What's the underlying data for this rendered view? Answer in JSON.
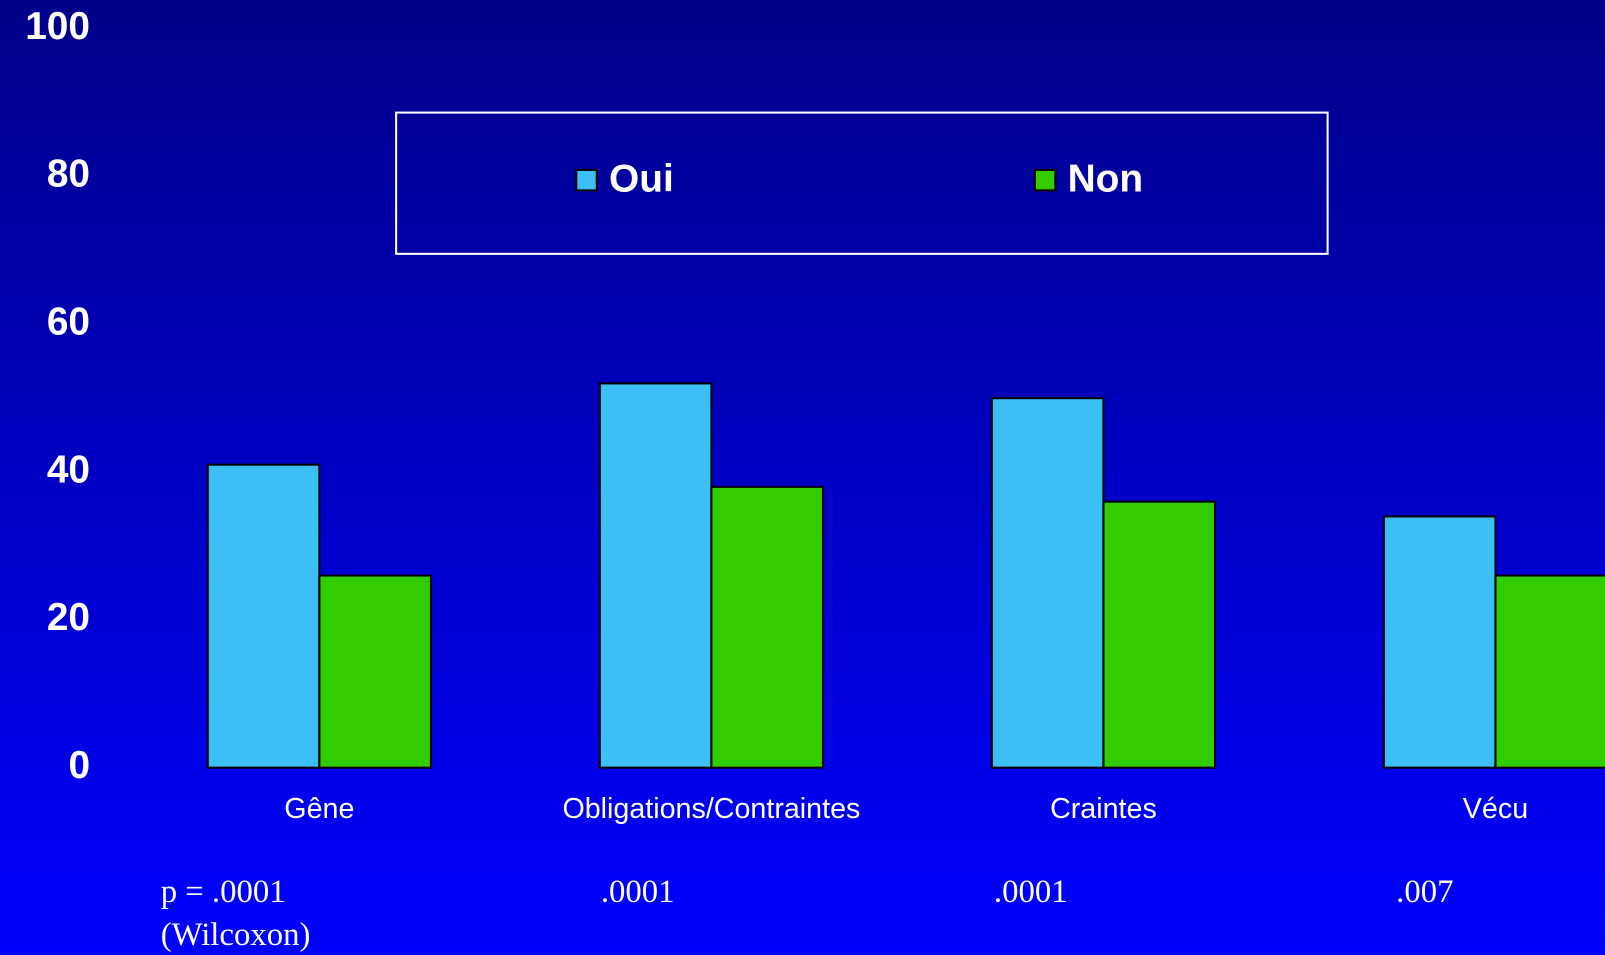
{
  "chart_data": {
    "type": "bar",
    "categories": [
      "Gêne",
      "Obligations/Contraintes",
      "Craintes",
      "Vécu"
    ],
    "series": [
      {
        "name": "Oui",
        "color": "#3bbff5",
        "values": [
          41,
          52,
          50,
          34
        ]
      },
      {
        "name": "Non",
        "color": "#33cc00",
        "values": [
          26,
          38,
          36,
          26
        ]
      }
    ],
    "ylim": [
      0,
      100
    ],
    "yticks": [
      0,
      20,
      40,
      60,
      80,
      100
    ],
    "grid": false,
    "legend": "top",
    "p_values": [
      "p = .0001",
      ".0001",
      ".0001",
      ".007"
    ],
    "test_note": "(Wilcoxon)"
  }
}
